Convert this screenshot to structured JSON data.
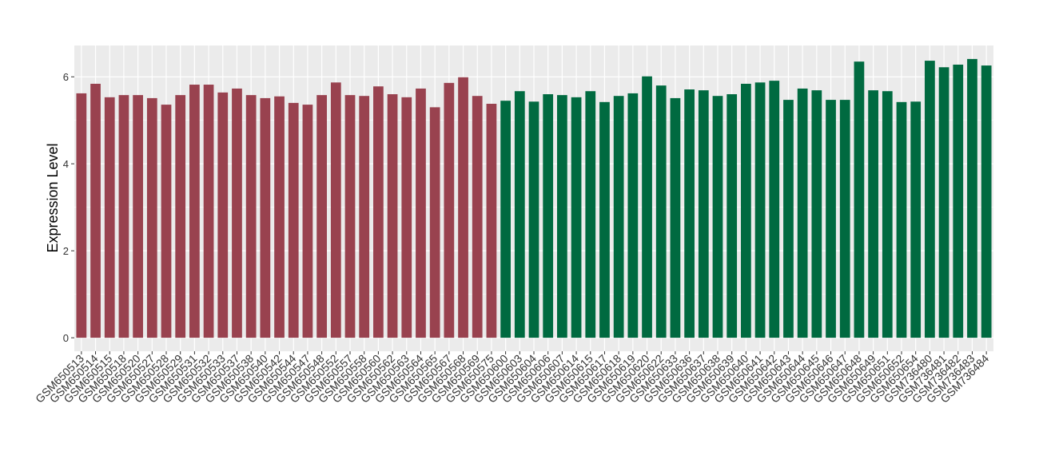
{
  "chart_data": {
    "type": "bar",
    "y_label": "Expression Level",
    "categories": [
      "GSM650513",
      "GSM650514",
      "GSM650515",
      "GSM650518",
      "GSM650520",
      "GSM650527",
      "GSM650528",
      "GSM650529",
      "GSM650531",
      "GSM650532",
      "GSM650533",
      "GSM650537",
      "GSM650538",
      "GSM650540",
      "GSM650542",
      "GSM650544",
      "GSM650547",
      "GSM650548",
      "GSM650552",
      "GSM650557",
      "GSM650558",
      "GSM650560",
      "GSM650562",
      "GSM650563",
      "GSM650564",
      "GSM650565",
      "GSM650567",
      "GSM650568",
      "GSM650569",
      "GSM650575",
      "GSM650600",
      "GSM650603",
      "GSM650604",
      "GSM650606",
      "GSM650607",
      "GSM650614",
      "GSM650615",
      "GSM650617",
      "GSM650618",
      "GSM650619",
      "GSM650620",
      "GSM650622",
      "GSM650633",
      "GSM650636",
      "GSM650637",
      "GSM650638",
      "GSM650639",
      "GSM650640",
      "GSM650641",
      "GSM650642",
      "GSM650643",
      "GSM650644",
      "GSM650645",
      "GSM650646",
      "GSM650647",
      "GSM650648",
      "GSM650649",
      "GSM650651",
      "GSM650652",
      "GSM650654",
      "GSM736480",
      "GSM736481",
      "GSM736482",
      "GSM736483",
      "GSM736484"
    ],
    "values": [
      5.62,
      5.84,
      5.53,
      5.58,
      5.58,
      5.51,
      5.36,
      5.58,
      5.82,
      5.82,
      5.64,
      5.73,
      5.58,
      5.51,
      5.55,
      5.4,
      5.36,
      5.58,
      5.87,
      5.58,
      5.56,
      5.78,
      5.6,
      5.53,
      5.73,
      5.3,
      5.86,
      5.99,
      5.56,
      5.38,
      5.45,
      5.67,
      5.43,
      5.6,
      5.58,
      5.53,
      5.67,
      5.42,
      5.56,
      5.62,
      6.01,
      5.8,
      5.51,
      5.71,
      5.69,
      5.56,
      5.6,
      5.84,
      5.87,
      5.91,
      5.47,
      5.73,
      5.69,
      5.47,
      5.47,
      6.35,
      5.69,
      5.67,
      5.42,
      5.43,
      6.37,
      6.22,
      6.28,
      6.41,
      6.26
    ],
    "colors": [
      "#99424f",
      "#99424f",
      "#99424f",
      "#99424f",
      "#99424f",
      "#99424f",
      "#99424f",
      "#99424f",
      "#99424f",
      "#99424f",
      "#99424f",
      "#99424f",
      "#99424f",
      "#99424f",
      "#99424f",
      "#99424f",
      "#99424f",
      "#99424f",
      "#99424f",
      "#99424f",
      "#99424f",
      "#99424f",
      "#99424f",
      "#99424f",
      "#99424f",
      "#99424f",
      "#99424f",
      "#99424f",
      "#99424f",
      "#99424f",
      "#006a40",
      "#006a40",
      "#006a40",
      "#006a40",
      "#006a40",
      "#006a40",
      "#006a40",
      "#006a40",
      "#006a40",
      "#006a40",
      "#006a40",
      "#006a40",
      "#006a40",
      "#006a40",
      "#006a40",
      "#006a40",
      "#006a40",
      "#006a40",
      "#006a40",
      "#006a40",
      "#006a40",
      "#006a40",
      "#006a40",
      "#006a40",
      "#006a40",
      "#006a40",
      "#006a40",
      "#006a40",
      "#006a40",
      "#006a40",
      "#006a40",
      "#006a40",
      "#006a40",
      "#006a40",
      "#006a40"
    ],
    "ylim": [
      -0.31,
      6.72
    ],
    "yticks": [
      0,
      2,
      4,
      6
    ],
    "minor_yticks": [
      1,
      3,
      5
    ],
    "grid": true
  }
}
